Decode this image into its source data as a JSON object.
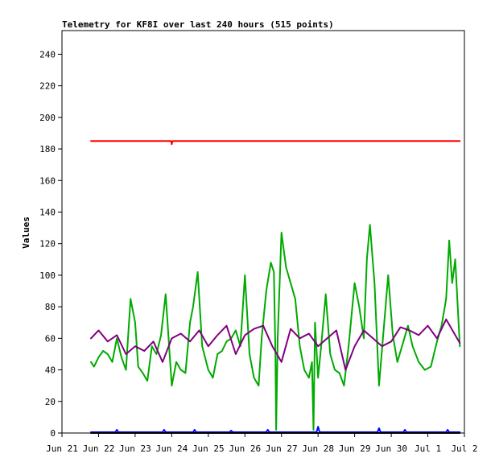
{
  "chart_data": {
    "type": "line",
    "title": "Telemetry for KF8I over last 240 hours (515 points)",
    "xlabel": "",
    "ylabel": "Values",
    "ylim": [
      0,
      255
    ],
    "yticks": [
      0,
      20,
      40,
      60,
      80,
      100,
      120,
      140,
      160,
      180,
      200,
      220,
      240
    ],
    "xlim": [
      "2025-06-21",
      "2025-07-02"
    ],
    "xticks": [
      "Jun 21",
      "Jun 22",
      "Jun 23",
      "Jun 24",
      "Jun 25",
      "Jun 26",
      "Jun 27",
      "Jun 28",
      "Jun 29",
      "Jun 30",
      "Jul 1",
      "Jul 2"
    ],
    "grid": false,
    "legend": "none",
    "series": [
      {
        "color": "#ff0000",
        "x": [
          "2025-06-21T19:00",
          "2025-06-23T00:00",
          "2025-06-23T23:30",
          "2025-06-24T00:00",
          "2025-06-24T00:30",
          "2025-06-26T00:00",
          "2025-06-28T00:00",
          "2025-06-30T00:00",
          "2025-07-01T21:00"
        ],
        "values": [
          185,
          185,
          185,
          183,
          185,
          185,
          185,
          185,
          185
        ]
      },
      {
        "color": "#00aa00",
        "x": [
          "2025-06-21T19:00",
          "2025-06-21T21:00",
          "2025-06-22T00:00",
          "2025-06-22T03:00",
          "2025-06-22T06:00",
          "2025-06-22T09:00",
          "2025-06-22T12:00",
          "2025-06-22T15:00",
          "2025-06-22T18:00",
          "2025-06-22T21:00",
          "2025-06-23T00:00",
          "2025-06-23T02:00",
          "2025-06-23T05:00",
          "2025-06-23T08:00",
          "2025-06-23T11:00",
          "2025-06-23T14:00",
          "2025-06-23T17:00",
          "2025-06-23T20:00",
          "2025-06-24T00:00",
          "2025-06-24T03:00",
          "2025-06-24T06:00",
          "2025-06-24T09:00",
          "2025-06-24T12:00",
          "2025-06-24T14:00",
          "2025-06-24T17:00",
          "2025-06-24T20:00",
          "2025-06-25T00:00",
          "2025-06-25T03:00",
          "2025-06-25T06:00",
          "2025-06-25T09:00",
          "2025-06-25T12:00",
          "2025-06-25T15:00",
          "2025-06-25T18:00",
          "2025-06-25T21:00",
          "2025-06-26T00:00",
          "2025-06-26T03:00",
          "2025-06-26T06:00",
          "2025-06-26T09:00",
          "2025-06-26T11:00",
          "2025-06-26T14:00",
          "2025-06-26T17:00",
          "2025-06-26T19:00",
          "2025-06-26T20:00",
          "2025-06-26T20:30",
          "2025-06-26T21:30",
          "2025-06-27T00:00",
          "2025-06-27T03:00",
          "2025-06-27T06:00",
          "2025-06-27T09:00",
          "2025-06-27T12:00",
          "2025-06-27T15:00",
          "2025-06-27T18:00",
          "2025-06-27T20:00",
          "2025-06-27T21:00",
          "2025-06-27T22:00",
          "2025-06-28T00:00",
          "2025-06-28T02:00",
          "2025-06-28T05:00",
          "2025-06-28T08:00",
          "2025-06-28T11:00",
          "2025-06-28T14:00",
          "2025-06-28T17:00",
          "2025-06-28T20:00",
          "2025-06-29T00:00",
          "2025-06-29T03:00",
          "2025-06-29T06:00",
          "2025-06-29T08:00",
          "2025-06-29T10:00",
          "2025-06-29T13:00",
          "2025-06-29T16:00",
          "2025-06-29T19:00",
          "2025-06-29T22:00",
          "2025-06-30T01:00",
          "2025-06-30T04:00",
          "2025-06-30T08:00",
          "2025-06-30T11:00",
          "2025-06-30T14:00",
          "2025-06-30T18:00",
          "2025-06-30T22:00",
          "2025-07-01T02:00",
          "2025-07-01T06:00",
          "2025-07-01T09:00",
          "2025-07-01T12:00",
          "2025-07-01T14:00",
          "2025-07-01T16:00",
          "2025-07-01T18:00",
          "2025-07-01T21:00"
        ],
        "values": [
          45,
          42,
          48,
          52,
          50,
          45,
          60,
          48,
          40,
          85,
          70,
          42,
          38,
          33,
          55,
          50,
          62,
          88,
          30,
          45,
          40,
          38,
          70,
          80,
          102,
          55,
          40,
          35,
          50,
          52,
          58,
          60,
          65,
          55,
          100,
          50,
          35,
          30,
          60,
          90,
          108,
          102,
          50,
          2,
          60,
          127,
          105,
          95,
          85,
          55,
          40,
          35,
          45,
          2,
          70,
          35,
          55,
          88,
          50,
          40,
          38,
          30,
          55,
          95,
          80,
          60,
          110,
          132,
          95,
          30,
          65,
          100,
          62,
          45,
          58,
          68,
          55,
          45,
          40,
          42,
          58,
          68,
          85,
          122,
          95,
          110,
          55
        ]
      },
      {
        "color": "#800080",
        "x": [
          "2025-06-21T19:00",
          "2025-06-22T00:00",
          "2025-06-22T06:00",
          "2025-06-22T12:00",
          "2025-06-22T18:00",
          "2025-06-23T00:00",
          "2025-06-23T06:00",
          "2025-06-23T12:00",
          "2025-06-23T18:00",
          "2025-06-24T00:00",
          "2025-06-24T06:00",
          "2025-06-24T12:00",
          "2025-06-24T18:00",
          "2025-06-25T00:00",
          "2025-06-25T06:00",
          "2025-06-25T12:00",
          "2025-06-25T18:00",
          "2025-06-26T00:00",
          "2025-06-26T06:00",
          "2025-06-26T12:00",
          "2025-06-26T18:00",
          "2025-06-27T00:00",
          "2025-06-27T06:00",
          "2025-06-27T12:00",
          "2025-06-27T18:00",
          "2025-06-28T00:00",
          "2025-06-28T06:00",
          "2025-06-28T12:00",
          "2025-06-28T18:00",
          "2025-06-29T00:00",
          "2025-06-29T06:00",
          "2025-06-29T12:00",
          "2025-06-29T18:00",
          "2025-06-30T00:00",
          "2025-06-30T06:00",
          "2025-06-30T12:00",
          "2025-06-30T18:00",
          "2025-07-01T00:00",
          "2025-07-01T06:00",
          "2025-07-01T12:00",
          "2025-07-01T21:00"
        ],
        "values": [
          60,
          65,
          58,
          62,
          50,
          55,
          52,
          58,
          45,
          60,
          63,
          58,
          65,
          55,
          62,
          68,
          50,
          62,
          66,
          68,
          55,
          45,
          66,
          60,
          63,
          55,
          60,
          65,
          40,
          55,
          65,
          60,
          55,
          58,
          67,
          65,
          62,
          68,
          60,
          72,
          57
        ]
      },
      {
        "color": "#0000ff",
        "x": [
          "2025-06-21T19:00",
          "2025-06-22T11:00",
          "2025-06-22T12:00",
          "2025-06-22T13:00",
          "2025-06-23T18:00",
          "2025-06-23T19:00",
          "2025-06-23T20:00",
          "2025-06-24T14:00",
          "2025-06-24T15:00",
          "2025-06-24T16:00",
          "2025-06-25T14:00",
          "2025-06-25T15:00",
          "2025-06-25T16:00",
          "2025-06-26T14:00",
          "2025-06-26T15:00",
          "2025-06-26T16:00",
          "2025-06-27T23:00",
          "2025-06-28T00:00",
          "2025-06-28T01:00",
          "2025-06-29T15:00",
          "2025-06-29T16:00",
          "2025-06-29T17:00",
          "2025-06-30T08:00",
          "2025-06-30T09:00",
          "2025-06-30T10:00",
          "2025-07-01T12:00",
          "2025-07-01T13:00",
          "2025-07-01T14:00",
          "2025-07-01T21:00"
        ],
        "values": [
          0.5,
          0.5,
          2,
          0.5,
          0.5,
          2,
          0.5,
          0.5,
          2,
          0.5,
          0.5,
          1.5,
          0.5,
          0.5,
          2,
          0.5,
          0.5,
          4,
          0.5,
          0.5,
          3,
          0.5,
          0.5,
          2,
          0.5,
          0.5,
          2,
          0.5,
          0.5
        ]
      },
      {
        "color": "#000000",
        "x": [
          "2025-06-21T19:00",
          "2025-07-01T21:00"
        ],
        "values": [
          0,
          0
        ]
      }
    ]
  }
}
